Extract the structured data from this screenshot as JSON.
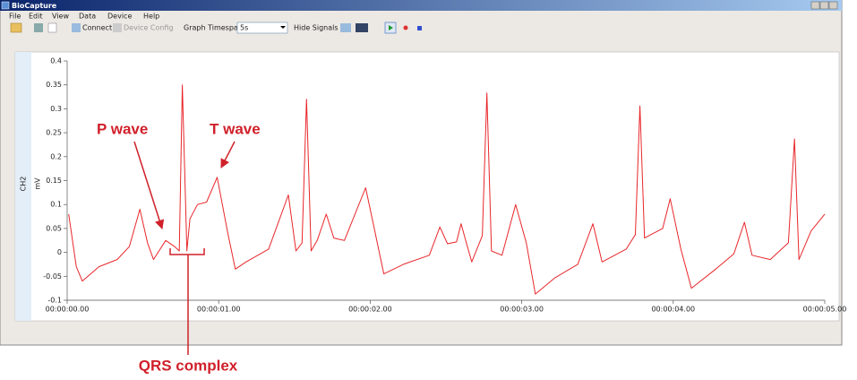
{
  "window": {
    "title": "BioCapture",
    "menu": [
      "File",
      "Edit",
      "View",
      "Data",
      "Device",
      "Help"
    ],
    "toolbar": {
      "connect": "Connect",
      "device_config": "Device Config",
      "timespan_label": "Graph Timespan",
      "timespan_value": "5s",
      "hide_signals": "Hide Signals"
    }
  },
  "chart_data": {
    "type": "line",
    "ylabel": "mV",
    "x": [
      0.01,
      0.06,
      0.1,
      0.21,
      0.33,
      0.41,
      0.48,
      0.53,
      0.57,
      0.65,
      0.71,
      0.74,
      0.76,
      0.79,
      0.81,
      0.86,
      0.92,
      0.99,
      1.06,
      1.11,
      1.18,
      1.33,
      1.46,
      1.51,
      1.55,
      1.58,
      1.61,
      1.65,
      1.71,
      1.76,
      1.83,
      1.97,
      2.03,
      2.09,
      2.22,
      2.39,
      2.46,
      2.51,
      2.57,
      2.6,
      2.63,
      2.67,
      2.74,
      2.77,
      2.8,
      2.87,
      2.96,
      3.03,
      3.09,
      3.22,
      3.37,
      3.47,
      3.53,
      3.69,
      3.75,
      3.78,
      3.81,
      3.93,
      3.98,
      4.05,
      4.12,
      4.28,
      4.4,
      4.47,
      4.52,
      4.64,
      4.76,
      4.8,
      4.83,
      4.91,
      5.0
    ],
    "series": [
      {
        "name": "CH2",
        "color": "#e8262a",
        "values": [
          0.08,
          -0.03,
          -0.06,
          -0.03,
          -0.015,
          0.012,
          0.09,
          0.02,
          -0.015,
          0.025,
          0.012,
          0.003,
          0.35,
          0.003,
          0.07,
          0.1,
          0.105,
          0.157,
          0.04,
          -0.035,
          -0.02,
          0.007,
          0.12,
          0.003,
          0.02,
          0.32,
          0.003,
          0.025,
          0.08,
          0.03,
          0.025,
          0.135,
          0.045,
          -0.045,
          -0.025,
          -0.006,
          0.053,
          0.018,
          0.022,
          0.06,
          0.025,
          -0.02,
          0.035,
          0.333,
          0.003,
          -0.006,
          0.1,
          0.02,
          -0.087,
          -0.053,
          -0.025,
          0.06,
          -0.02,
          0.007,
          0.037,
          0.306,
          0.03,
          0.05,
          0.112,
          0.007,
          -0.075,
          -0.035,
          -0.003,
          0.063,
          -0.006,
          -0.015,
          0.02,
          0.237,
          -0.015,
          0.045,
          0.08
        ]
      }
    ],
    "xlim": [
      0,
      5
    ],
    "xticks": [
      {
        "value": 0,
        "label": "00:00:00.00"
      },
      {
        "value": 1,
        "label": "00:00:01.00"
      },
      {
        "value": 2,
        "label": "00:00:02.00"
      },
      {
        "value": 3,
        "label": "00:00:03.00"
      },
      {
        "value": 4,
        "label": "00:00:04.00"
      },
      {
        "value": 5,
        "label": "00:00:05.00"
      }
    ],
    "ylim": [
      -0.1,
      0.4
    ],
    "yticks": [
      -0.1,
      -0.05,
      0,
      0.05,
      0.1,
      0.15,
      0.2,
      0.25,
      0.3,
      0.35,
      0.4
    ],
    "grid": false,
    "annotations": [
      "P wave",
      "T wave",
      "QRS complex"
    ]
  }
}
